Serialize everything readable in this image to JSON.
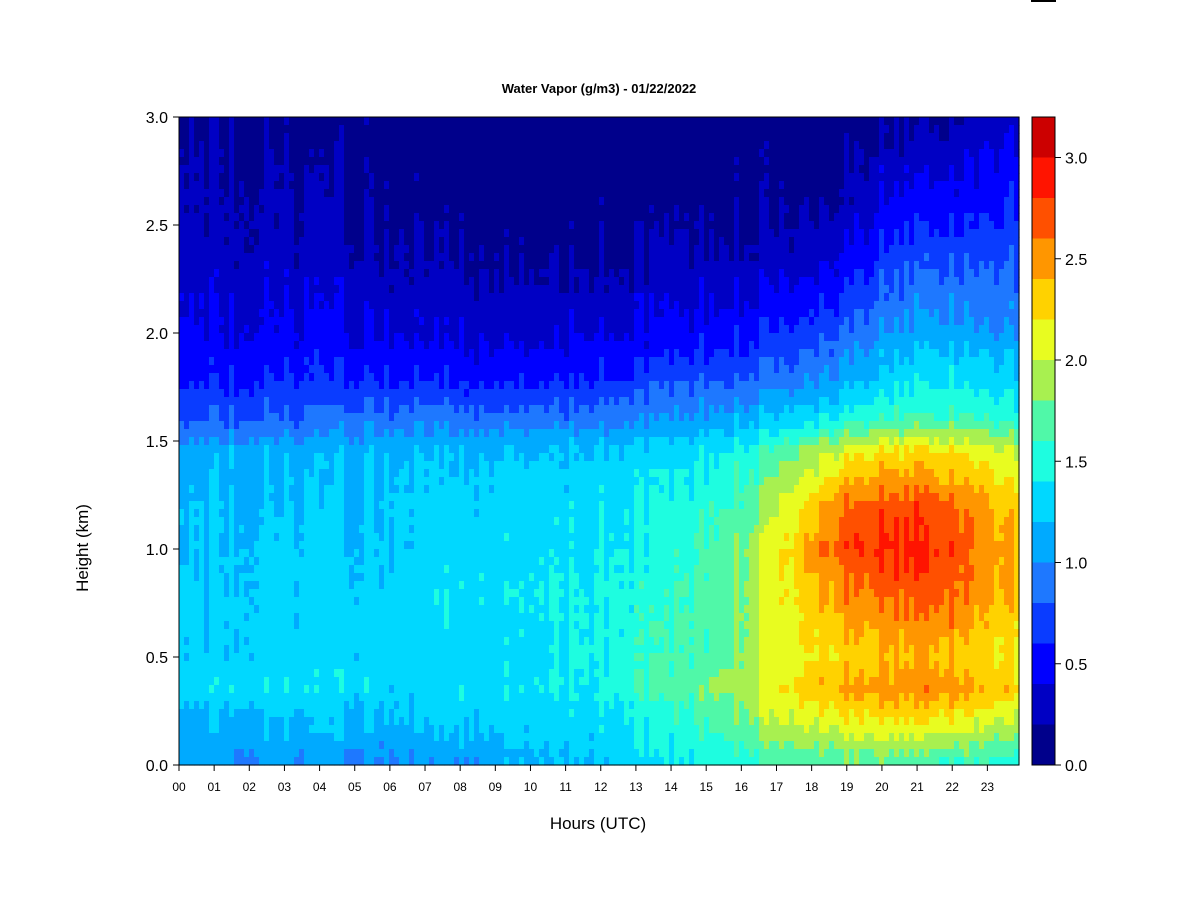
{
  "chart_data": {
    "type": "heatmap",
    "title": "Water Vapor (g/m3) - 01/22/2022",
    "xlabel": "Hours (UTC)",
    "ylabel": "Height (km)",
    "xlim": [
      0,
      23.9
    ],
    "ylim": [
      0,
      3.0
    ],
    "x_ticks": [
      "00",
      "01",
      "02",
      "03",
      "04",
      "05",
      "06",
      "07",
      "08",
      "09",
      "10",
      "11",
      "12",
      "13",
      "14",
      "15",
      "16",
      "17",
      "18",
      "19",
      "20",
      "21",
      "22",
      "23"
    ],
    "y_ticks": [
      "0.0",
      "0.5",
      "1.0",
      "1.5",
      "2.0",
      "2.5",
      "3.0"
    ],
    "colorbar": {
      "range": [
        0,
        3.2
      ],
      "ticks": [
        "0.0",
        "0.5",
        "1.0",
        "1.5",
        "2.0",
        "2.5",
        "3.0"
      ],
      "levels": [
        0,
        0.2,
        0.4,
        0.6,
        0.8,
        1.0,
        1.2,
        1.4,
        1.6,
        1.8,
        2.0,
        2.2,
        2.4,
        2.6,
        2.8,
        3.0,
        3.2
      ],
      "colors": [
        "#00008b",
        "#0000c4",
        "#0000ff",
        "#0a3cff",
        "#1e78ff",
        "#00aaff",
        "#00d8ff",
        "#1efde0",
        "#50f8a8",
        "#a8f050",
        "#e8fc20",
        "#ffd200",
        "#ff9600",
        "#ff5000",
        "#ff1400",
        "#cc0000",
        "#7f0000"
      ]
    },
    "hours": [
      0,
      2,
      4,
      6,
      8,
      10,
      12,
      14,
      15,
      16,
      17,
      18,
      19,
      20,
      21,
      22,
      23,
      23.9
    ],
    "profiles_km": [
      0,
      0.2,
      0.35,
      0.5,
      0.8,
      1.0,
      1.2,
      1.45,
      1.6,
      1.8,
      2.0,
      2.3,
      2.6,
      2.85,
      3.0
    ],
    "values_gm3": [
      [
        1.1,
        1.1,
        1.3,
        1.25,
        1.25,
        1.2,
        1.2,
        1.1,
        0.8,
        0.55,
        0.45,
        0.3,
        0.25,
        0.2,
        0.18
      ],
      [
        1.05,
        1.15,
        1.35,
        1.3,
        1.28,
        1.25,
        1.22,
        1.15,
        0.8,
        0.6,
        0.45,
        0.3,
        0.25,
        0.2,
        0.15
      ],
      [
        1.0,
        1.2,
        1.35,
        1.3,
        1.3,
        1.25,
        1.2,
        1.15,
        0.85,
        0.6,
        0.45,
        0.3,
        0.22,
        0.15,
        0.12
      ],
      [
        1.0,
        1.2,
        1.3,
        1.3,
        1.3,
        1.25,
        1.25,
        1.2,
        0.9,
        0.6,
        0.4,
        0.25,
        0.15,
        0.1,
        0.08
      ],
      [
        1.05,
        1.25,
        1.35,
        1.3,
        1.35,
        1.3,
        1.3,
        1.2,
        0.9,
        0.55,
        0.35,
        0.22,
        0.12,
        0.08,
        0.05
      ],
      [
        1.15,
        1.3,
        1.4,
        1.35,
        1.4,
        1.35,
        1.3,
        1.2,
        0.9,
        0.55,
        0.35,
        0.2,
        0.1,
        0.05,
        0.02
      ],
      [
        1.25,
        1.35,
        1.45,
        1.45,
        1.45,
        1.4,
        1.35,
        1.25,
        0.95,
        0.6,
        0.4,
        0.2,
        0.1,
        0.06,
        0.05
      ],
      [
        1.35,
        1.5,
        1.65,
        1.6,
        1.55,
        1.5,
        1.45,
        1.3,
        1.0,
        0.7,
        0.45,
        0.25,
        0.12,
        0.08,
        0.06
      ],
      [
        1.45,
        1.65,
        1.8,
        1.7,
        1.7,
        1.65,
        1.55,
        1.4,
        1.1,
        0.75,
        0.5,
        0.28,
        0.13,
        0.08,
        0.06
      ],
      [
        1.55,
        1.8,
        1.95,
        1.85,
        1.85,
        1.8,
        1.7,
        1.5,
        1.15,
        0.8,
        0.55,
        0.3,
        0.15,
        0.1,
        0.07
      ],
      [
        1.6,
        1.95,
        2.15,
        2.05,
        2.1,
        2.1,
        1.95,
        1.65,
        1.25,
        0.85,
        0.6,
        0.32,
        0.15,
        0.1,
        0.07
      ],
      [
        1.65,
        2.05,
        2.35,
        2.2,
        2.35,
        2.5,
        2.3,
        1.9,
        1.35,
        0.95,
        0.7,
        0.35,
        0.15,
        0.1,
        0.07
      ],
      [
        1.7,
        2.15,
        2.45,
        2.3,
        2.55,
        2.75,
        2.6,
        2.1,
        1.5,
        1.1,
        0.85,
        0.5,
        0.25,
        0.15,
        0.1
      ],
      [
        1.7,
        2.2,
        2.5,
        2.35,
        2.65,
        2.85,
        2.7,
        2.25,
        1.6,
        1.25,
        1.0,
        0.7,
        0.4,
        0.25,
        0.12
      ],
      [
        1.65,
        2.2,
        2.55,
        2.4,
        2.7,
        2.85,
        2.75,
        2.25,
        1.65,
        1.35,
        1.1,
        0.8,
        0.5,
        0.3,
        0.15
      ],
      [
        1.6,
        2.15,
        2.5,
        2.35,
        2.65,
        2.75,
        2.65,
        2.2,
        1.65,
        1.35,
        1.1,
        0.8,
        0.5,
        0.3,
        0.15
      ],
      [
        1.55,
        2.05,
        2.4,
        2.25,
        2.5,
        2.55,
        2.45,
        2.1,
        1.6,
        1.3,
        1.05,
        0.8,
        0.55,
        0.4,
        0.3
      ],
      [
        1.5,
        1.95,
        2.3,
        2.15,
        2.35,
        2.4,
        2.3,
        2.0,
        1.5,
        1.25,
        1.0,
        0.8,
        0.6,
        0.45,
        0.35
      ]
    ]
  }
}
